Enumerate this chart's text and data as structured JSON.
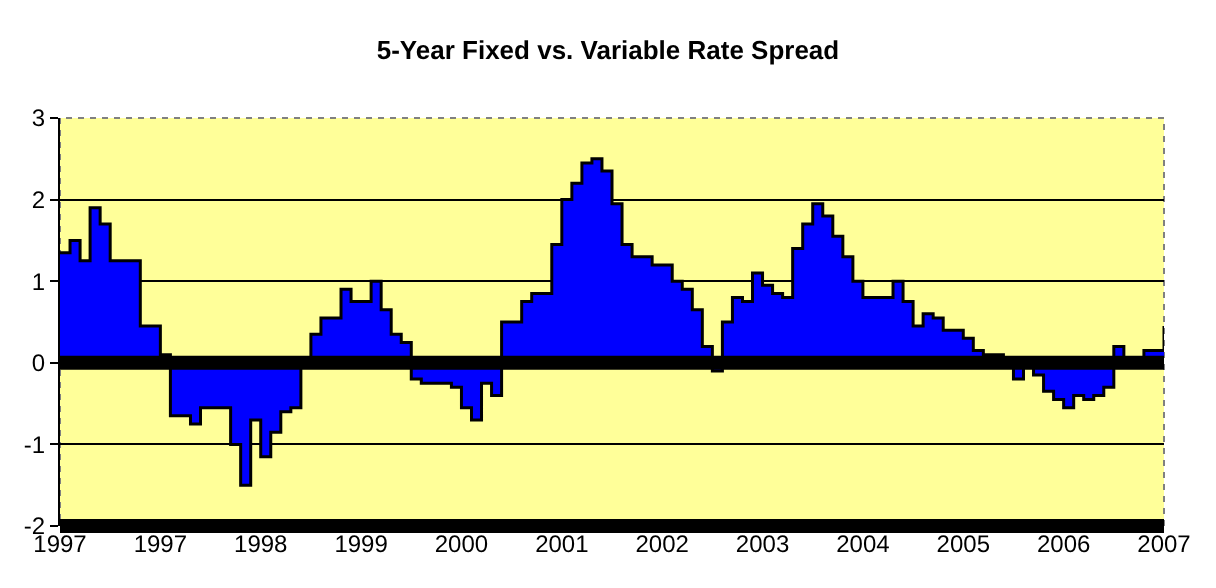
{
  "chart_data": {
    "type": "area",
    "title": "5-Year Fixed vs. Variable Rate Spread",
    "categories": [
      "1997",
      null,
      null,
      null,
      null,
      null,
      null,
      null,
      null,
      null,
      "1997",
      null,
      null,
      null,
      null,
      null,
      null,
      null,
      null,
      null,
      "1998",
      null,
      null,
      null,
      null,
      null,
      null,
      null,
      null,
      null,
      "1999",
      null,
      null,
      null,
      null,
      null,
      null,
      null,
      null,
      null,
      "2000",
      null,
      null,
      null,
      null,
      null,
      null,
      null,
      null,
      null,
      "2001",
      null,
      null,
      null,
      null,
      null,
      null,
      null,
      null,
      null,
      "2002",
      null,
      null,
      null,
      null,
      null,
      null,
      null,
      null,
      null,
      "2003",
      null,
      null,
      null,
      null,
      null,
      null,
      null,
      null,
      null,
      "2004",
      null,
      null,
      null,
      null,
      null,
      null,
      null,
      null,
      null,
      "2005",
      null,
      null,
      null,
      null,
      null,
      null,
      null,
      null,
      null,
      "2006",
      null,
      null,
      null,
      null,
      null,
      null,
      null,
      null,
      null,
      "2007"
    ],
    "series": [
      {
        "color": "#0000ff",
        "values": [
          1.35,
          1.5,
          1.25,
          1.9,
          1.7,
          1.25,
          1.25,
          1.25,
          0.45,
          0.45,
          0.1,
          -0.65,
          -0.65,
          -0.75,
          -0.55,
          -0.55,
          -0.55,
          -1.0,
          -1.5,
          -0.7,
          -1.15,
          -0.85,
          -0.6,
          -0.55,
          0.05,
          0.35,
          0.55,
          0.55,
          0.9,
          0.75,
          0.75,
          1.0,
          0.65,
          0.35,
          0.25,
          -0.2,
          -0.25,
          -0.25,
          -0.25,
          -0.3,
          -0.55,
          -0.7,
          -0.25,
          -0.4,
          0.5,
          0.5,
          0.75,
          0.85,
          0.85,
          1.45,
          2.0,
          2.2,
          2.45,
          2.5,
          2.35,
          1.95,
          1.45,
          1.3,
          1.3,
          1.2,
          1.2,
          1.0,
          0.9,
          0.65,
          0.2,
          -0.1,
          0.5,
          0.8,
          0.75,
          1.1,
          0.95,
          0.85,
          0.8,
          1.4,
          1.7,
          1.95,
          1.8,
          1.55,
          1.3,
          1.0,
          0.8,
          0.8,
          0.8,
          1.0,
          0.75,
          0.45,
          0.6,
          0.55,
          0.4,
          0.4,
          0.3,
          0.15,
          0.1,
          0.1,
          0.0,
          -0.2,
          0.0,
          -0.15,
          -0.35,
          -0.45,
          -0.55,
          -0.4,
          -0.45,
          -0.4,
          -0.3,
          0.2,
          0.0,
          0.0,
          0.15,
          0.15,
          0.45
        ]
      }
    ],
    "ylim": [
      -2,
      3
    ],
    "yticks": [
      -2,
      -1,
      0,
      1,
      2,
      3
    ],
    "grid": "y",
    "ref_lines": [
      {
        "axis": "y",
        "value": 0,
        "color": "#000000"
      }
    ]
  }
}
